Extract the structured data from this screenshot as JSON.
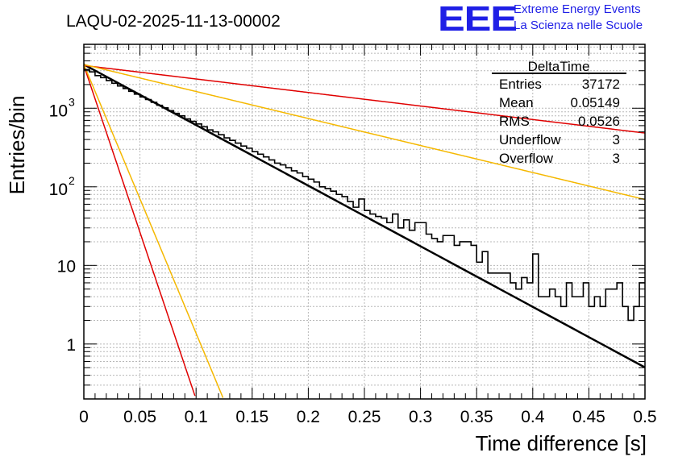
{
  "branding": {
    "logo_text": "EEE",
    "line1": "Extreme Energy Events",
    "line2": "La Scienza nelle Scuole",
    "color": "#1f1fe6"
  },
  "chart_data": {
    "type": "histogram",
    "title": "LAQU-02-2025-11-13-00002",
    "xlabel": "Time difference [s]",
    "ylabel": "Entries/bin",
    "xlim": [
      0,
      0.5
    ],
    "ylim": [
      0.2,
      6500
    ],
    "yscale": "log",
    "grid": true,
    "x_ticks": [
      "0",
      "0.05",
      "0.1",
      "0.15",
      "0.2",
      "0.25",
      "0.3",
      "0.35",
      "0.4",
      "0.45",
      "0.5"
    ],
    "y_ticks": [
      {
        "value": 1,
        "label": "1"
      },
      {
        "value": 10,
        "label": "10"
      },
      {
        "value": 100,
        "label": "10",
        "exp": "2"
      },
      {
        "value": 1000,
        "label": "10",
        "exp": "3"
      }
    ],
    "stats_box": {
      "title": "DeltaTime",
      "placement": "top-right",
      "rows": [
        {
          "label": "Entries",
          "value": "37172"
        },
        {
          "label": "Mean",
          "value": "0.05149"
        },
        {
          "label": "RMS",
          "value": "0.0526"
        },
        {
          "label": "Underflow",
          "value": "3"
        },
        {
          "label": "Overflow",
          "value": "3"
        }
      ]
    },
    "histogram": {
      "bin_width": 0.005,
      "x_start": 0,
      "color": "#000000",
      "counts": [
        3100,
        2900,
        2600,
        2450,
        2250,
        2080,
        1920,
        1780,
        1640,
        1510,
        1390,
        1290,
        1190,
        1090,
        1010,
        930,
        860,
        800,
        730,
        680,
        630,
        580,
        530,
        500,
        460,
        420,
        390,
        360,
        330,
        310,
        280,
        260,
        240,
        220,
        200,
        190,
        175,
        160,
        150,
        135,
        125,
        115,
        100,
        95,
        88,
        80,
        75,
        65,
        55,
        70,
        50,
        45,
        42,
        40,
        35,
        45,
        30,
        38,
        28,
        35,
        35,
        25,
        22,
        20,
        24,
        24,
        18,
        20,
        20,
        18,
        11,
        15,
        8,
        8,
        8,
        8,
        6,
        5,
        7,
        6,
        14,
        4,
        4,
        5,
        4,
        3,
        6,
        4,
        4,
        6,
        3,
        4,
        3,
        5,
        5,
        6,
        3,
        2,
        3,
        6
      ],
      "note": "bins with value 0 drop to the lower axis"
    },
    "fits": [
      {
        "name": "exponential fit",
        "color": "#000000",
        "A": 3600,
        "tau": 0.05634,
        "width": 2.5
      },
      {
        "name": "upper limit",
        "color": "#e00000",
        "A": 3500,
        "tau": 0.2525,
        "width": 1.5
      },
      {
        "name": "upper band",
        "color": "#f5b800",
        "A": 3600,
        "tau": 0.1264,
        "width": 1.5
      },
      {
        "name": "lower limit",
        "color": "#e00000",
        "A": 3500,
        "tau": 0.01023,
        "width": 1.5
      },
      {
        "name": "lower band",
        "color": "#f5b800",
        "A": 3600,
        "tau": 0.0127,
        "width": 1.5
      }
    ]
  }
}
